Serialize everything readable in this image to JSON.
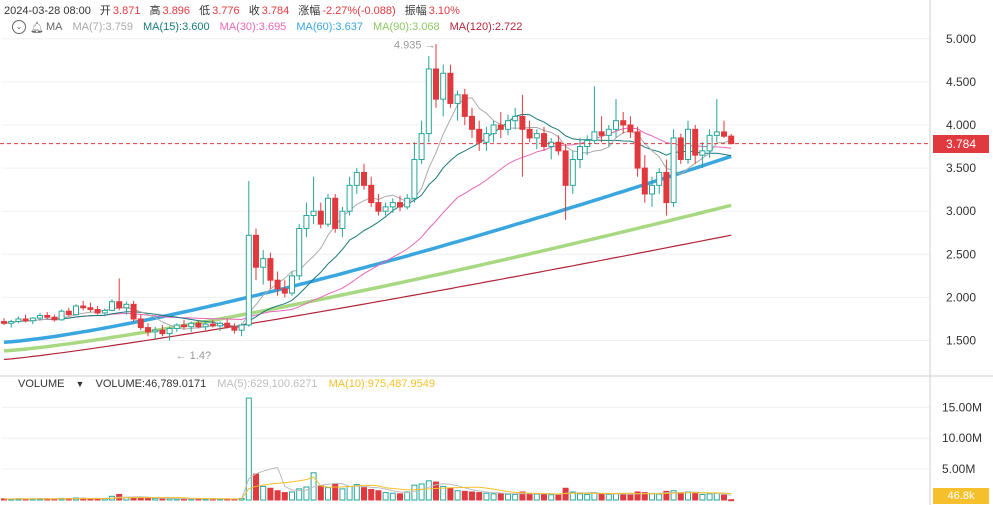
{
  "header": {
    "datetime": "2024-03-28 08:00",
    "open_label": "开",
    "open": "3.871",
    "high_label": "高",
    "high": "3.896",
    "low_label": "低",
    "low": "3.776",
    "close_label": "收",
    "close": "3.784",
    "change_label": "涨幅",
    "change": "-2.27%(-0.088)",
    "amplitude_label": "振幅",
    "amplitude": "3.10%"
  },
  "ma_legend": {
    "name": "MA",
    "ma7": "MA(7):3.759",
    "ma15": "MA(15):3.600",
    "ma30": "MA(30):3.695",
    "ma60": "MA(60):3.637",
    "ma90": "MA(90):3.068",
    "ma120": "MA(120):2.722"
  },
  "volume_legend": {
    "name": "VOLUME",
    "volume": "VOLUME:46,789.0171",
    "ma5": "MA(5):629,100.6271",
    "ma10": "MA(10):975,487.9549"
  },
  "current_price_tag": "3.784",
  "current_volume_tag": "46.8k",
  "colors": {
    "up": "#26a69a",
    "down": "#e0393e",
    "ma7": "#aaaaaa",
    "ma15": "#1a7a7a",
    "ma30": "#e667b8",
    "ma60": "#3aa6df",
    "ma90": "#a8d982",
    "ma120": "#b3263a",
    "vol_ma5": "#bdbdbd",
    "vol_ma10": "#f5c02b"
  },
  "chart_data": {
    "type": "candlestick",
    "price_axis": {
      "ticks": [
        1.5,
        2.0,
        2.5,
        3.0,
        3.5,
        4.0,
        4.5,
        5.0
      ],
      "tick_labels": [
        "1.500",
        "2.000",
        "2.500",
        "3.000",
        "3.500",
        "4.000",
        "4.500",
        "5.000"
      ],
      "range": [
        1.1,
        5.45
      ]
    },
    "volume_axis": {
      "ticks": [
        5000000,
        10000000,
        15000000
      ],
      "tick_labels": [
        "5.00M",
        "10.00M",
        "15.00M"
      ],
      "range": [
        0,
        17000000
      ]
    },
    "annotations": [
      {
        "text": "4.935 →",
        "value": 4.935
      },
      {
        "text": "← 1.4?",
        "value": 1.45
      }
    ],
    "current_price": 3.784,
    "candles": [
      [
        1.72,
        1.76,
        1.68,
        1.7,
        180
      ],
      [
        1.7,
        1.74,
        1.65,
        1.72,
        150
      ],
      [
        1.72,
        1.78,
        1.7,
        1.75,
        200
      ],
      [
        1.75,
        1.8,
        1.71,
        1.73,
        170
      ],
      [
        1.73,
        1.77,
        1.69,
        1.76,
        160
      ],
      [
        1.76,
        1.82,
        1.74,
        1.79,
        210
      ],
      [
        1.79,
        1.83,
        1.75,
        1.77,
        190
      ],
      [
        1.77,
        1.8,
        1.72,
        1.74,
        175
      ],
      [
        1.74,
        1.86,
        1.73,
        1.84,
        260
      ],
      [
        1.84,
        1.88,
        1.78,
        1.8,
        230
      ],
      [
        1.8,
        1.92,
        1.79,
        1.9,
        320
      ],
      [
        1.9,
        1.96,
        1.85,
        1.88,
        280
      ],
      [
        1.88,
        1.94,
        1.83,
        1.86,
        240
      ],
      [
        1.86,
        1.9,
        1.8,
        1.82,
        220
      ],
      [
        1.82,
        1.87,
        1.78,
        1.85,
        230
      ],
      [
        1.85,
        1.98,
        1.84,
        1.95,
        600
      ],
      [
        1.95,
        2.22,
        1.85,
        1.88,
        900
      ],
      [
        1.88,
        1.95,
        1.8,
        1.92,
        380
      ],
      [
        1.92,
        1.96,
        1.72,
        1.75,
        420
      ],
      [
        1.75,
        1.8,
        1.62,
        1.65,
        350
      ],
      [
        1.65,
        1.7,
        1.55,
        1.6,
        300
      ],
      [
        1.6,
        1.66,
        1.52,
        1.62,
        260
      ],
      [
        1.62,
        1.68,
        1.55,
        1.58,
        240
      ],
      [
        1.58,
        1.66,
        1.5,
        1.64,
        230
      ],
      [
        1.64,
        1.7,
        1.6,
        1.68,
        210
      ],
      [
        1.68,
        1.74,
        1.63,
        1.66,
        200
      ],
      [
        1.66,
        1.72,
        1.6,
        1.7,
        190
      ],
      [
        1.7,
        1.73,
        1.64,
        1.66,
        180
      ],
      [
        1.66,
        1.72,
        1.62,
        1.69,
        170
      ],
      [
        1.69,
        1.74,
        1.65,
        1.67,
        175
      ],
      [
        1.67,
        1.72,
        1.61,
        1.7,
        165
      ],
      [
        1.7,
        1.75,
        1.64,
        1.66,
        170
      ],
      [
        1.66,
        1.7,
        1.58,
        1.62,
        160
      ],
      [
        1.62,
        1.7,
        1.55,
        1.68,
        250
      ],
      [
        1.68,
        3.35,
        1.66,
        2.72,
        16500
      ],
      [
        2.72,
        2.8,
        2.2,
        2.35,
        4200
      ],
      [
        2.35,
        2.55,
        2.15,
        2.45,
        2200
      ],
      [
        2.45,
        2.52,
        2.1,
        2.2,
        1900
      ],
      [
        2.2,
        2.3,
        2.02,
        2.1,
        1500
      ],
      [
        2.1,
        2.2,
        2.0,
        2.05,
        1200
      ],
      [
        2.05,
        2.3,
        2.02,
        2.25,
        1300
      ],
      [
        2.25,
        2.85,
        2.2,
        2.8,
        1800
      ],
      [
        2.8,
        3.1,
        2.7,
        2.95,
        2100
      ],
      [
        2.95,
        3.4,
        2.85,
        3.0,
        4400
      ],
      [
        3.0,
        3.1,
        2.8,
        2.85,
        2300
      ],
      [
        2.85,
        3.2,
        2.82,
        3.15,
        2000
      ],
      [
        3.15,
        3.2,
        2.75,
        2.8,
        2600
      ],
      [
        2.8,
        3.05,
        2.7,
        3.0,
        1800
      ],
      [
        3.0,
        3.4,
        2.95,
        3.3,
        2200
      ],
      [
        3.3,
        3.5,
        3.2,
        3.45,
        2500
      ],
      [
        3.45,
        3.55,
        3.25,
        3.3,
        2000
      ],
      [
        3.3,
        3.4,
        3.05,
        3.1,
        1700
      ],
      [
        3.1,
        3.2,
        2.95,
        3.0,
        1500
      ],
      [
        3.0,
        3.1,
        2.95,
        3.05,
        1200
      ],
      [
        3.05,
        3.15,
        2.98,
        3.1,
        1100
      ],
      [
        3.1,
        3.18,
        3.0,
        3.05,
        1000
      ],
      [
        3.05,
        3.2,
        3.02,
        3.15,
        1300
      ],
      [
        3.15,
        3.8,
        3.1,
        3.6,
        2400
      ],
      [
        3.6,
        4.05,
        3.55,
        3.9,
        2600
      ],
      [
        3.9,
        4.8,
        3.8,
        4.65,
        3100
      ],
      [
        4.65,
        4.94,
        4.2,
        4.3,
        2900
      ],
      [
        4.3,
        4.7,
        4.1,
        4.6,
        2200
      ],
      [
        4.6,
        4.7,
        4.2,
        4.25,
        1900
      ],
      [
        4.25,
        4.4,
        4.05,
        4.35,
        1500
      ],
      [
        4.35,
        4.42,
        4.0,
        4.1,
        1400
      ],
      [
        4.1,
        4.2,
        3.85,
        3.95,
        1300
      ],
      [
        3.95,
        4.05,
        3.7,
        3.8,
        1200
      ],
      [
        3.8,
        3.98,
        3.7,
        3.9,
        1100
      ],
      [
        3.9,
        4.05,
        3.8,
        4.0,
        1000
      ],
      [
        4.0,
        4.15,
        3.85,
        3.95,
        1050
      ],
      [
        3.95,
        4.12,
        3.88,
        4.05,
        950
      ],
      [
        4.05,
        4.2,
        3.95,
        4.1,
        900
      ],
      [
        4.1,
        4.35,
        3.4,
        3.95,
        1300
      ],
      [
        3.95,
        4.05,
        3.8,
        3.85,
        1000
      ],
      [
        3.85,
        3.95,
        3.72,
        3.9,
        950
      ],
      [
        3.9,
        3.98,
        3.7,
        3.75,
        900
      ],
      [
        3.75,
        3.85,
        3.6,
        3.8,
        850
      ],
      [
        3.8,
        3.88,
        3.65,
        3.7,
        800
      ],
      [
        3.7,
        3.78,
        2.9,
        3.3,
        1900
      ],
      [
        3.3,
        3.7,
        3.2,
        3.6,
        1300
      ],
      [
        3.6,
        3.85,
        3.5,
        3.75,
        1000
      ],
      [
        3.75,
        3.88,
        3.65,
        3.82,
        900
      ],
      [
        3.82,
        4.45,
        3.78,
        3.92,
        1100
      ],
      [
        3.92,
        4.1,
        3.8,
        3.88,
        950
      ],
      [
        3.88,
        4.0,
        3.75,
        3.95,
        900
      ],
      [
        3.95,
        4.3,
        3.85,
        4.05,
        1000
      ],
      [
        4.05,
        4.15,
        3.9,
        4.0,
        950
      ],
      [
        4.0,
        4.1,
        3.85,
        3.92,
        900
      ],
      [
        3.92,
        3.98,
        3.4,
        3.5,
        1300
      ],
      [
        3.5,
        3.65,
        3.1,
        3.2,
        1200
      ],
      [
        3.2,
        3.4,
        3.05,
        3.3,
        1000
      ],
      [
        3.3,
        3.5,
        3.2,
        3.45,
        950
      ],
      [
        3.45,
        3.6,
        2.95,
        3.1,
        1400
      ],
      [
        3.1,
        3.95,
        3.05,
        3.85,
        1500
      ],
      [
        3.85,
        3.9,
        3.55,
        3.6,
        1200
      ],
      [
        3.6,
        4.05,
        3.55,
        3.95,
        1300
      ],
      [
        3.95,
        4.0,
        3.55,
        3.65,
        1100
      ],
      [
        3.65,
        3.8,
        3.5,
        3.7,
        900
      ],
      [
        3.7,
        3.95,
        3.62,
        3.88,
        1000
      ],
      [
        3.88,
        4.3,
        3.8,
        3.92,
        1100
      ],
      [
        3.92,
        4.05,
        3.85,
        3.87,
        800
      ],
      [
        3.871,
        3.896,
        3.776,
        3.784,
        47
      ]
    ]
  }
}
